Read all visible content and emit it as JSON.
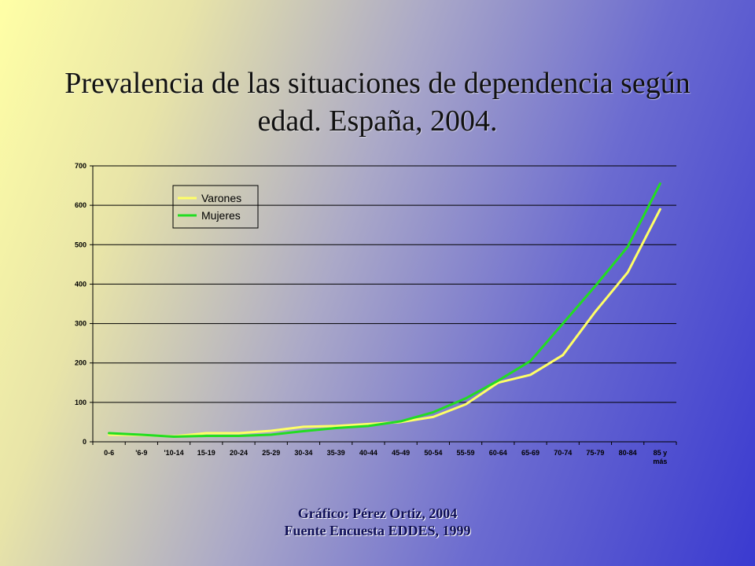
{
  "title": {
    "line1": "Prevalencia de las situaciones de dependencia según",
    "line2": "edad. España, 2004."
  },
  "caption": {
    "line1": "Gráfico: Pérez Ortiz, 2004",
    "line2": "Fuente Encuesta EDDES, 1999"
  },
  "chart_data": {
    "type": "line",
    "title": "Prevalencia de las situaciones de dependencia según edad. España, 2004.",
    "xlabel": "",
    "ylabel": "",
    "ylim": [
      0,
      700
    ],
    "yticks": [
      0,
      100,
      200,
      300,
      400,
      500,
      600,
      700
    ],
    "grid": true,
    "legend_position": "top-left",
    "categories": [
      "0-6",
      "'6-9",
      "'10-14",
      "15-19",
      "20-24",
      "25-29",
      "30-34",
      "35-39",
      "40-44",
      "45-49",
      "50-54",
      "55-59",
      "60-64",
      "65-69",
      "70-74",
      "75-79",
      "80-84",
      "85 y más"
    ],
    "series": [
      {
        "name": "Varones",
        "color": "#ffff66",
        "values": [
          18,
          17,
          14,
          22,
          22,
          28,
          38,
          40,
          45,
          50,
          63,
          95,
          150,
          170,
          220,
          330,
          430,
          590
        ]
      },
      {
        "name": "Mujeres",
        "color": "#22dd22",
        "values": [
          22,
          18,
          13,
          15,
          15,
          18,
          27,
          35,
          40,
          52,
          75,
          110,
          155,
          205,
          300,
          395,
          495,
          655
        ]
      }
    ]
  }
}
